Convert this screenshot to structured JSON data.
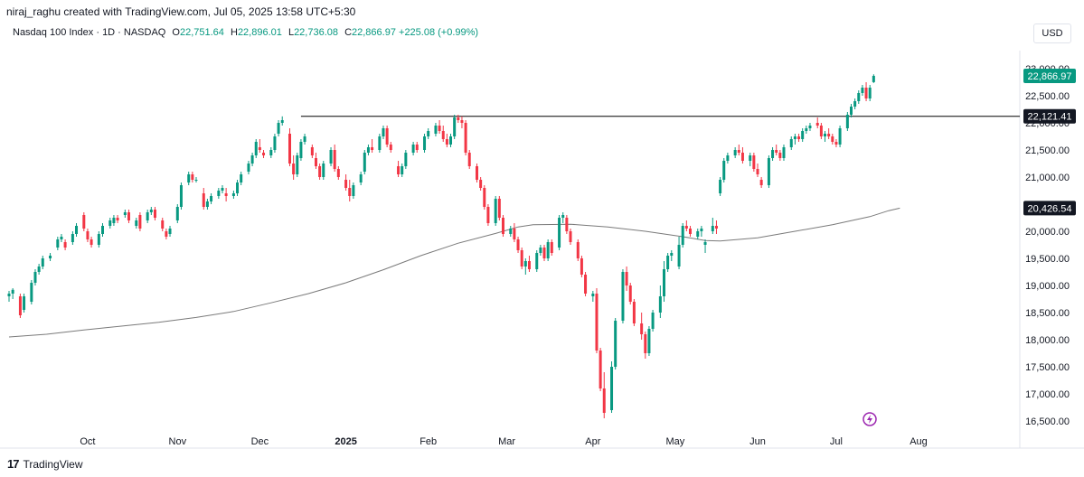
{
  "attribution": "niraj_raghu created with TradingView.com, Jul 05, 2025 13:58 UTC+5:30",
  "legend": {
    "symbol": "Nasdaq 100 Index · 1D · NASDAQ",
    "o_label": "O",
    "o_value": "22,751.64",
    "h_label": "H",
    "h_value": "22,896.01",
    "l_label": "L",
    "l_value": "22,736.08",
    "c_label": "C",
    "c_value": "22,866.97",
    "change": "+225.08 (+0.99%)"
  },
  "currency": "USD",
  "footer": {
    "brand": "TradingView",
    "logo": "17"
  },
  "colors": {
    "up": "#089981",
    "down": "#f23645",
    "ma": "#7a7a7a",
    "hline": "#000000",
    "axisText": "#131722",
    "tagText": "#ffffff",
    "lastPrice": "#089981",
    "tagDark": "#131722",
    "flash": "#9c27b0"
  },
  "chart_data": {
    "type": "candlestick",
    "title": "Nasdaq 100 Index · 1D · NASDAQ",
    "ylim": [
      16300,
      23200
    ],
    "y_ticks": [
      "23,000.00",
      "22,500.00",
      "22,000.00",
      "21,500.00",
      "21,000.00",
      "20,500.00",
      "20,000.00",
      "19,500.00",
      "19,000.00",
      "18,500.00",
      "18,000.00",
      "17,500.00",
      "17,000.00",
      "16,500.00"
    ],
    "x_ticks": [
      "Oct",
      "Nov",
      "Dec",
      "2025",
      "Feb",
      "Mar",
      "Apr",
      "May",
      "Jun",
      "Jul",
      "Aug"
    ],
    "price_tags": [
      {
        "value": 22866.97,
        "label": "22,866.97",
        "kind": "last"
      },
      {
        "value": 22121.41,
        "label": "22,121.41",
        "kind": "line"
      },
      {
        "value": 20426.54,
        "label": "20,426.54",
        "kind": "ma"
      }
    ],
    "horizontal_line": 22121.41,
    "moving_average": [
      [
        0,
        18050
      ],
      [
        10,
        18100
      ],
      [
        20,
        18180
      ],
      [
        30,
        18250
      ],
      [
        40,
        18320
      ],
      [
        50,
        18410
      ],
      [
        60,
        18520
      ],
      [
        70,
        18680
      ],
      [
        80,
        18850
      ],
      [
        90,
        19050
      ],
      [
        100,
        19290
      ],
      [
        110,
        19550
      ],
      [
        120,
        19780
      ],
      [
        130,
        19960
      ],
      [
        136,
        20080
      ],
      [
        140,
        20120
      ],
      [
        150,
        20130
      ],
      [
        160,
        20080
      ],
      [
        170,
        20000
      ],
      [
        180,
        19900
      ],
      [
        186,
        19830
      ],
      [
        190,
        19820
      ],
      [
        200,
        19880
      ],
      [
        210,
        20000
      ],
      [
        220,
        20120
      ],
      [
        230,
        20270
      ],
      [
        235,
        20380
      ],
      [
        238,
        20426.54
      ]
    ],
    "candles": [
      [
        0,
        18800,
        18900,
        18700,
        18850
      ],
      [
        1,
        18850,
        18950,
        18750,
        18920
      ],
      [
        3,
        18800,
        18850,
        18400,
        18450
      ],
      [
        4,
        18550,
        18850,
        18500,
        18800
      ],
      [
        6,
        18700,
        19100,
        18650,
        19050
      ],
      [
        7,
        19050,
        19300,
        19000,
        19250
      ],
      [
        8,
        19250,
        19400,
        19200,
        19350
      ],
      [
        9,
        19350,
        19550,
        19300,
        19500
      ],
      [
        11,
        19500,
        19600,
        19450,
        19550
      ],
      [
        13,
        19700,
        19900,
        19650,
        19850
      ],
      [
        14,
        19850,
        19950,
        19800,
        19900
      ],
      [
        15,
        19800,
        19850,
        19650,
        19700
      ],
      [
        17,
        19800,
        20000,
        19750,
        19950
      ],
      [
        18,
        19950,
        20150,
        19900,
        20100
      ],
      [
        20,
        20300,
        20350,
        20000,
        20050
      ],
      [
        21,
        20000,
        20050,
        19800,
        19850
      ],
      [
        22,
        19850,
        19900,
        19700,
        19750
      ],
      [
        24,
        19750,
        20000,
        19700,
        19950
      ],
      [
        25,
        19950,
        20150,
        19900,
        20100
      ],
      [
        27,
        20100,
        20250,
        20050,
        20200
      ],
      [
        28,
        20150,
        20300,
        20100,
        20250
      ],
      [
        29,
        20250,
        20300,
        20150,
        20200
      ],
      [
        31,
        20300,
        20400,
        20250,
        20350
      ],
      [
        32,
        20350,
        20400,
        20150,
        20200
      ],
      [
        34,
        20100,
        20250,
        20050,
        20200
      ],
      [
        35,
        20300,
        20350,
        20000,
        20050
      ],
      [
        37,
        20200,
        20400,
        20150,
        20350
      ],
      [
        38,
        20350,
        20450,
        20300,
        20400
      ],
      [
        39,
        20400,
        20450,
        20200,
        20250
      ],
      [
        41,
        20200,
        20250,
        20000,
        20050
      ],
      [
        42,
        20000,
        20050,
        19850,
        19900
      ],
      [
        43,
        19950,
        20100,
        19900,
        20050
      ],
      [
        45,
        20200,
        20500,
        20150,
        20450
      ],
      [
        46,
        20450,
        20900,
        20400,
        20850
      ],
      [
        48,
        20900,
        21100,
        20850,
        21050
      ],
      [
        49,
        21050,
        21100,
        20900,
        20950
      ],
      [
        50,
        20950,
        21000,
        20900,
        20950
      ],
      [
        52,
        20700,
        20800,
        20400,
        20450
      ],
      [
        53,
        20450,
        20600,
        20400,
        20550
      ],
      [
        54,
        20550,
        20700,
        20500,
        20650
      ],
      [
        56,
        20650,
        20800,
        20600,
        20750
      ],
      [
        57,
        20750,
        20850,
        20700,
        20800
      ],
      [
        58,
        20700,
        20800,
        20550,
        20650
      ],
      [
        60,
        20650,
        20750,
        20600,
        20700
      ],
      [
        61,
        20700,
        20950,
        20650,
        20900
      ],
      [
        62,
        20900,
        21100,
        20850,
        21050
      ],
      [
        64,
        21100,
        21300,
        21050,
        21250
      ],
      [
        65,
        21250,
        21450,
        21200,
        21400
      ],
      [
        66,
        21400,
        21700,
        21350,
        21650
      ],
      [
        67,
        21550,
        21700,
        21450,
        21500
      ],
      [
        68,
        21450,
        21500,
        21350,
        21400
      ],
      [
        70,
        21400,
        21550,
        21350,
        21500
      ],
      [
        71,
        21500,
        21800,
        21450,
        21750
      ],
      [
        72,
        21800,
        22050,
        21750,
        22000
      ],
      [
        73,
        22000,
        22120,
        21950,
        22050
      ],
      [
        75,
        21800,
        21900,
        21200,
        21250
      ],
      [
        76,
        21250,
        21400,
        20950,
        21050
      ],
      [
        77,
        21050,
        21450,
        21000,
        21400
      ],
      [
        78,
        21350,
        21700,
        21300,
        21650
      ],
      [
        79,
        21650,
        21800,
        21600,
        21750
      ],
      [
        81,
        21550,
        21600,
        21350,
        21400
      ],
      [
        82,
        21350,
        21450,
        21150,
        21200
      ],
      [
        83,
        21200,
        21250,
        20950,
        21000
      ],
      [
        84,
        21000,
        21300,
        20950,
        21250
      ],
      [
        86,
        21250,
        21550,
        21200,
        21500
      ],
      [
        87,
        21500,
        21600,
        21100,
        21150
      ],
      [
        88,
        21150,
        21200,
        20950,
        21000
      ],
      [
        90,
        20950,
        21050,
        20750,
        20800
      ],
      [
        91,
        20800,
        20950,
        20550,
        20650
      ],
      [
        92,
        20650,
        20900,
        20600,
        20850
      ],
      [
        94,
        20900,
        21100,
        20850,
        21050
      ],
      [
        95,
        21100,
        21500,
        21050,
        21450
      ],
      [
        96,
        21450,
        21600,
        21400,
        21550
      ],
      [
        97,
        21550,
        21700,
        21450,
        21500
      ],
      [
        99,
        21500,
        21800,
        21450,
        21750
      ],
      [
        100,
        21750,
        21950,
        21700,
        21900
      ],
      [
        101,
        21900,
        21950,
        21550,
        21600
      ],
      [
        102,
        21600,
        21650,
        21450,
        21500
      ],
      [
        104,
        21200,
        21300,
        21000,
        21050
      ],
      [
        105,
        21050,
        21250,
        21000,
        21200
      ],
      [
        106,
        21200,
        21500,
        21150,
        21450
      ],
      [
        108,
        21450,
        21650,
        21400,
        21600
      ],
      [
        109,
        21600,
        21650,
        21450,
        21500
      ],
      [
        111,
        21500,
        21800,
        21450,
        21750
      ],
      [
        112,
        21750,
        21900,
        21700,
        21850
      ],
      [
        114,
        21800,
        22000,
        21750,
        21950
      ],
      [
        115,
        21950,
        22050,
        21800,
        21850
      ],
      [
        116,
        21850,
        21950,
        21650,
        21700
      ],
      [
        117,
        21700,
        21800,
        21550,
        21600
      ],
      [
        118,
        21600,
        21800,
        21550,
        21750
      ],
      [
        119,
        21750,
        22150,
        21700,
        22100
      ],
      [
        120,
        22100,
        22150,
        22000,
        22050
      ],
      [
        121,
        22050,
        22120,
        21900,
        22000
      ],
      [
        122,
        22000,
        22050,
        21400,
        21450
      ],
      [
        123,
        21450,
        21500,
        21150,
        21200
      ],
      [
        125,
        21200,
        21250,
        20900,
        20950
      ],
      [
        126,
        20950,
        21000,
        20750,
        20800
      ],
      [
        127,
        20800,
        20850,
        20400,
        20450
      ],
      [
        128,
        20450,
        20500,
        20100,
        20150
      ],
      [
        130,
        20150,
        20650,
        20100,
        20600
      ],
      [
        131,
        20600,
        20650,
        20200,
        20250
      ],
      [
        132,
        20250,
        20300,
        19900,
        19950
      ],
      [
        134,
        19950,
        20100,
        19900,
        20050
      ],
      [
        135,
        20050,
        20150,
        19800,
        19850
      ],
      [
        136,
        19850,
        19900,
        19600,
        19650
      ],
      [
        137,
        19650,
        19700,
        19300,
        19350
      ],
      [
        138,
        19350,
        19500,
        19200,
        19450
      ],
      [
        139,
        19450,
        19550,
        19250,
        19300
      ],
      [
        141,
        19300,
        19650,
        19250,
        19600
      ],
      [
        142,
        19600,
        19750,
        19550,
        19700
      ],
      [
        143,
        19700,
        19750,
        19450,
        19500
      ],
      [
        144,
        19500,
        19850,
        19450,
        19800
      ],
      [
        145,
        19800,
        19850,
        19550,
        19600
      ],
      [
        147,
        19700,
        20300,
        19650,
        20250
      ],
      [
        148,
        20250,
        20350,
        20150,
        20300
      ],
      [
        149,
        20250,
        20300,
        19950,
        20000
      ],
      [
        150,
        20000,
        20050,
        19750,
        19800
      ],
      [
        152,
        19800,
        19850,
        19450,
        19500
      ],
      [
        153,
        19500,
        19550,
        19150,
        19200
      ],
      [
        154,
        19200,
        19250,
        18800,
        18850
      ],
      [
        156,
        18800,
        18900,
        18700,
        18850
      ],
      [
        157,
        18850,
        18950,
        17750,
        17800
      ],
      [
        158,
        17800,
        17850,
        17050,
        17100
      ],
      [
        159,
        17100,
        17400,
        16550,
        16650
      ],
      [
        161,
        16700,
        17600,
        16650,
        17500
      ],
      [
        162,
        17500,
        18400,
        17450,
        18350
      ],
      [
        164,
        18350,
        19300,
        18300,
        19250
      ],
      [
        165,
        19250,
        19350,
        18900,
        19000
      ],
      [
        166,
        19000,
        19050,
        18650,
        18700
      ],
      [
        167,
        18700,
        18750,
        18250,
        18300
      ],
      [
        169,
        18300,
        18500,
        18000,
        18100
      ],
      [
        170,
        18100,
        18150,
        17650,
        17750
      ],
      [
        171,
        17750,
        18250,
        17700,
        18200
      ],
      [
        172,
        18200,
        18550,
        18150,
        18500
      ],
      [
        174,
        18500,
        19000,
        18400,
        18800
      ],
      [
        175,
        18800,
        19450,
        18700,
        19300
      ],
      [
        176,
        19300,
        19600,
        19250,
        19550
      ],
      [
        177,
        19550,
        19650,
        19450,
        19600
      ],
      [
        179,
        19350,
        19900,
        19300,
        19750
      ],
      [
        180,
        19750,
        20150,
        19700,
        20100
      ],
      [
        181,
        20100,
        20200,
        20000,
        20050
      ],
      [
        182,
        20050,
        20100,
        19900,
        19950
      ],
      [
        184,
        19900,
        20050,
        19850,
        20000
      ],
      [
        185,
        20000,
        20100,
        19900,
        20050
      ],
      [
        186,
        19750,
        19850,
        19600,
        19800
      ],
      [
        188,
        20000,
        20250,
        19950,
        20100
      ],
      [
        189,
        20100,
        20200,
        19950,
        20050
      ],
      [
        190,
        20700,
        21000,
        20650,
        20950
      ],
      [
        191,
        20950,
        21350,
        20900,
        21300
      ],
      [
        192,
        21300,
        21450,
        21250,
        21400
      ],
      [
        194,
        21400,
        21550,
        21350,
        21500
      ],
      [
        195,
        21500,
        21600,
        21400,
        21450
      ],
      [
        196,
        21450,
        21550,
        21250,
        21300
      ],
      [
        198,
        21300,
        21450,
        21200,
        21400
      ],
      [
        199,
        21400,
        21450,
        21100,
        21150
      ],
      [
        200,
        21150,
        21250,
        21000,
        21050
      ],
      [
        201,
        20950,
        21000,
        20800,
        20850
      ],
      [
        203,
        20850,
        21400,
        20800,
        21350
      ],
      [
        204,
        21350,
        21550,
        21300,
        21500
      ],
      [
        205,
        21500,
        21600,
        21400,
        21450
      ],
      [
        206,
        21450,
        21500,
        21300,
        21350
      ],
      [
        207,
        21350,
        21600,
        21300,
        21550
      ],
      [
        209,
        21550,
        21750,
        21500,
        21700
      ],
      [
        210,
        21700,
        21800,
        21600,
        21750
      ],
      [
        211,
        21750,
        21800,
        21650,
        21700
      ],
      [
        212,
        21700,
        21900,
        21650,
        21850
      ],
      [
        213,
        21850,
        21950,
        21800,
        21900
      ],
      [
        214,
        21900,
        22000,
        21850,
        21950
      ],
      [
        216,
        22000,
        22100,
        21900,
        21950
      ],
      [
        217,
        21950,
        22000,
        21700,
        21750
      ],
      [
        218,
        21750,
        21850,
        21650,
        21800
      ],
      [
        219,
        21800,
        21900,
        21700,
        21750
      ],
      [
        220,
        21750,
        21800,
        21600,
        21650
      ],
      [
        221,
        21650,
        21700,
        21550,
        21600
      ],
      [
        222,
        21600,
        21950,
        21550,
        21900
      ],
      [
        224,
        21900,
        22200,
        21850,
        22150
      ],
      [
        225,
        22150,
        22350,
        22100,
        22300
      ],
      [
        226,
        22300,
        22450,
        22250,
        22400
      ],
      [
        227,
        22400,
        22600,
        22350,
        22550
      ],
      [
        228,
        22550,
        22700,
        22500,
        22650
      ],
      [
        229,
        22650,
        22750,
        22400,
        22450
      ],
      [
        230,
        22450,
        22700,
        22400,
        22650
      ],
      [
        231,
        22751.64,
        22896.01,
        22736.08,
        22866.97
      ]
    ]
  }
}
